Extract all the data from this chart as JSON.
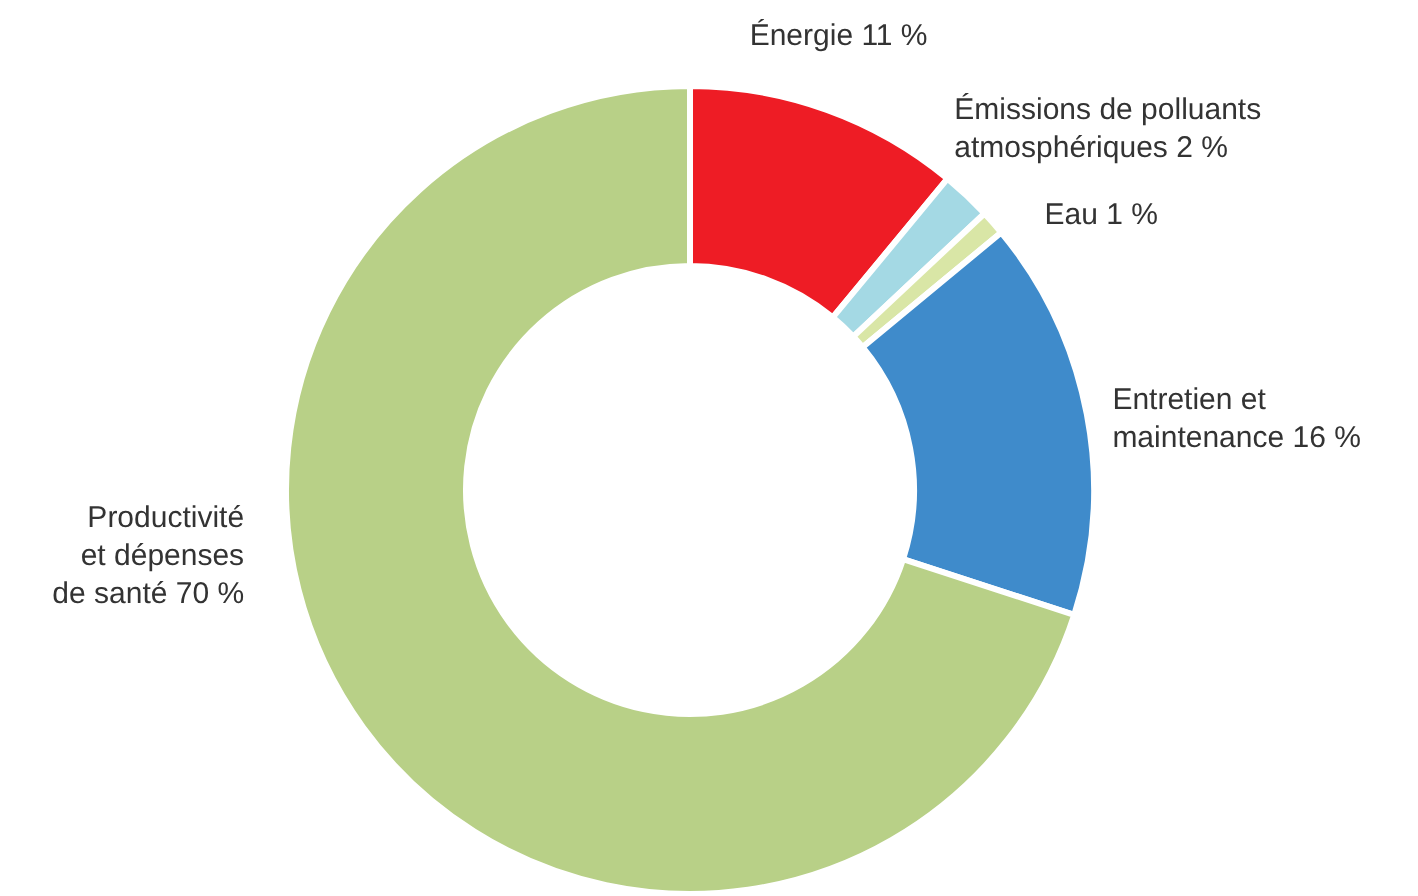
{
  "chart_data": {
    "type": "donut",
    "categories": [
      "Énergie",
      "Émissions de polluants atmosphériques",
      "Eau",
      "Entretien et maintenance",
      "Productivité et dépenses de santé"
    ],
    "values": [
      11,
      2,
      1,
      16,
      70
    ],
    "value_labels": [
      "11 %",
      "2 %",
      "1 %",
      "16 %",
      "70 %"
    ],
    "colors": [
      "#ee1c25",
      "#a4d9e4",
      "#d9e6a6",
      "#3f8bcb",
      "#b8d087"
    ]
  }
}
